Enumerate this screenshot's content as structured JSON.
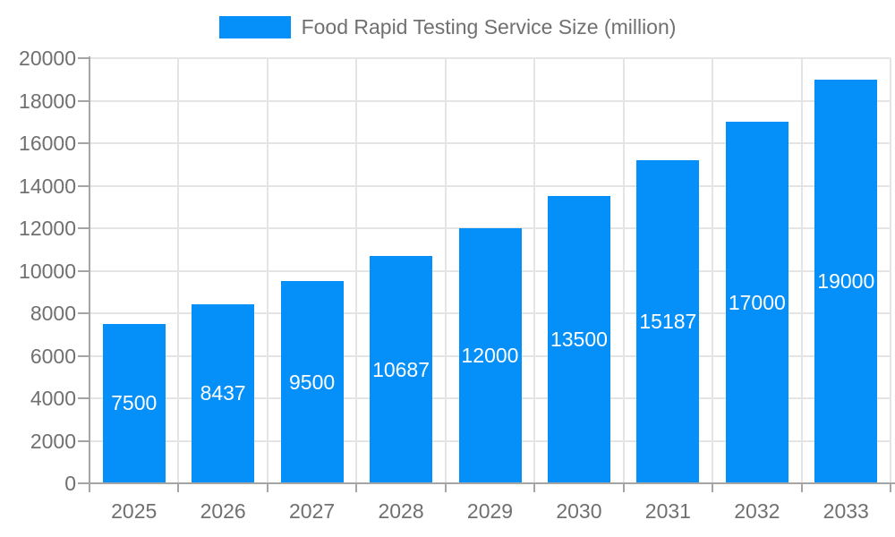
{
  "colors": {
    "bar": "#0590f9",
    "bar_label": "#ffffff",
    "axis_line": "#a5a5a5",
    "grid_line": "#e4e4e4",
    "text": "#707070"
  },
  "chart_data": {
    "type": "bar",
    "title": "",
    "legend": [
      "Food Rapid Testing Service Size (million)"
    ],
    "legend_position": "top",
    "categories": [
      "2025",
      "2026",
      "2027",
      "2028",
      "2029",
      "2030",
      "2031",
      "2032",
      "2033"
    ],
    "series": [
      {
        "name": "Food Rapid Testing Service Size (million)",
        "values": [
          7500,
          8437,
          9500,
          10687,
          12000,
          13500,
          15187,
          17000,
          19000
        ]
      }
    ],
    "xlabel": "",
    "ylabel": "",
    "ylim": [
      0,
      20000
    ],
    "ytick_step": 2000,
    "yticks": [
      0,
      2000,
      4000,
      6000,
      8000,
      10000,
      12000,
      14000,
      16000,
      18000,
      20000
    ],
    "grid": true,
    "bar_value_labels": true
  }
}
